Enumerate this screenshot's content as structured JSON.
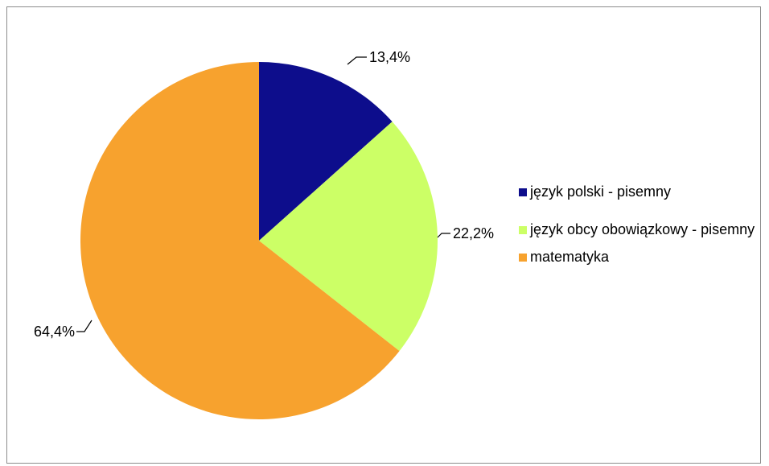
{
  "chart_data": {
    "type": "pie",
    "categories": [
      "język polski - pisemny",
      "język obcy obowiązkowy - pisemny",
      "matematyka"
    ],
    "values": [
      13.4,
      22.2,
      64.4
    ],
    "labels": [
      "13,4%",
      "22,2%",
      "64,4%"
    ],
    "colors": [
      "#0d0d8c",
      "#ccff66",
      "#f7a22e"
    ],
    "title": "",
    "legend_position": "right",
    "start_angle": "12 o'clock",
    "direction": "clockwise"
  },
  "legend": {
    "items": [
      {
        "label": "język polski - pisemny",
        "color": "#0d0d8c"
      },
      {
        "label": "język obcy obowiązkowy - pisemny",
        "color": "#ccff66"
      },
      {
        "label": "matematyka",
        "color": "#f7a22e"
      }
    ]
  }
}
